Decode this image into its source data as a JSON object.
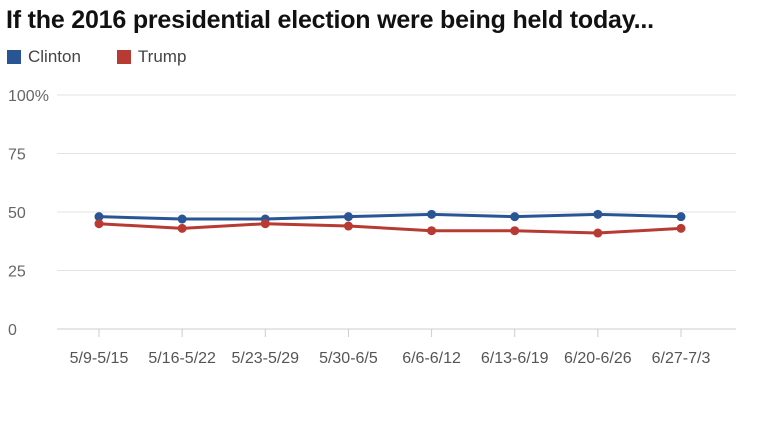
{
  "chart_data": {
    "type": "line",
    "title": "If the 2016 presidential election were being held today...",
    "categories": [
      "5/9-5/15",
      "5/16-5/22",
      "5/23-5/29",
      "5/30-6/5",
      "6/6-6/12",
      "6/13-6/19",
      "6/20-6/26",
      "6/27-7/3"
    ],
    "series": [
      {
        "name": "Clinton",
        "color": "#2a5595",
        "values": [
          48,
          47,
          47,
          48,
          49,
          48,
          49,
          48
        ]
      },
      {
        "name": "Trump",
        "color": "#b73b32",
        "values": [
          45,
          43,
          45,
          44,
          42,
          42,
          41,
          43
        ]
      }
    ],
    "yticks": [
      "0",
      "25",
      "50",
      "75",
      "100%"
    ],
    "ylim": [
      0,
      100
    ],
    "grid": true,
    "legend_position": "top-left",
    "xlabel": "",
    "ylabel": ""
  }
}
